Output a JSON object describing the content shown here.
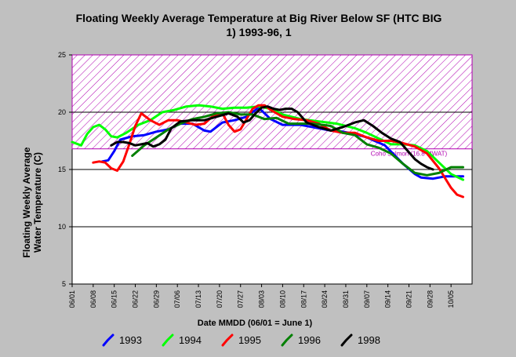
{
  "chart_data": {
    "type": "line",
    "title_lines": [
      "Floating Weekly Average Temperature at Big River Below SF (HTC BIG",
      "1) 1993-96, 1"
    ],
    "xlabel": "Date MMDD (06/01 = June 1)",
    "ylabel_lines": [
      "Floating Weekly Average",
      "Water Temperature (C)"
    ],
    "x_tick_labels": [
      "06/01",
      "06/08",
      "06/15",
      "06/22",
      "06/29",
      "07/06",
      "07/13",
      "07/20",
      "07/27",
      "08/03",
      "08/10",
      "08/17",
      "08/24",
      "08/31",
      "09/07",
      "09/14",
      "09/21",
      "09/28",
      "10/05"
    ],
    "x_tick_days": [
      0,
      7,
      14,
      21,
      28,
      35,
      42,
      49,
      56,
      63,
      70,
      77,
      84,
      91,
      98,
      105,
      112,
      119,
      126
    ],
    "xlim": [
      0,
      133
    ],
    "ylim": [
      5,
      25
    ],
    "y_ticks": [
      5,
      10,
      15,
      20,
      25
    ],
    "y_gridlines": [
      10,
      15,
      20
    ],
    "band": {
      "y0": 16.8,
      "y1": 25,
      "color": "#b000b0"
    },
    "annotation": "Coho Salmon (16.8 MWAT)",
    "series": [
      {
        "name": "1993",
        "color": "#0000ff",
        "points": [
          [
            10,
            15.7
          ],
          [
            12,
            15.8
          ],
          [
            14,
            16.6
          ],
          [
            16,
            17.6
          ],
          [
            20,
            17.9
          ],
          [
            24,
            18.0
          ],
          [
            28,
            18.3
          ],
          [
            32,
            18.5
          ],
          [
            36,
            19.0
          ],
          [
            40,
            19.0
          ],
          [
            44,
            18.4
          ],
          [
            46,
            18.3
          ],
          [
            50,
            19.1
          ],
          [
            54,
            19.3
          ],
          [
            58,
            19.6
          ],
          [
            62,
            20.4
          ],
          [
            66,
            19.4
          ],
          [
            70,
            18.9
          ],
          [
            76,
            18.9
          ],
          [
            80,
            18.7
          ],
          [
            86,
            18.4
          ],
          [
            90,
            18.3
          ],
          [
            94,
            18.1
          ],
          [
            98,
            17.8
          ],
          [
            104,
            17.1
          ],
          [
            110,
            15.5
          ],
          [
            114,
            14.6
          ],
          [
            116,
            14.3
          ],
          [
            120,
            14.2
          ],
          [
            124,
            14.4
          ],
          [
            128,
            14.4
          ],
          [
            130,
            14.4
          ]
        ]
      },
      {
        "name": "1994",
        "color": "#00ff00",
        "points": [
          [
            0,
            17.4
          ],
          [
            3,
            17.1
          ],
          [
            5,
            18.1
          ],
          [
            7,
            18.7
          ],
          [
            9,
            18.9
          ],
          [
            11,
            18.5
          ],
          [
            13,
            17.9
          ],
          [
            15,
            17.8
          ],
          [
            18,
            18.2
          ],
          [
            22,
            18.9
          ],
          [
            26,
            19.3
          ],
          [
            30,
            20.0
          ],
          [
            34,
            20.2
          ],
          [
            38,
            20.5
          ],
          [
            42,
            20.6
          ],
          [
            46,
            20.5
          ],
          [
            50,
            20.3
          ],
          [
            54,
            20.4
          ],
          [
            58,
            20.4
          ],
          [
            62,
            20.5
          ],
          [
            66,
            20.3
          ],
          [
            70,
            19.8
          ],
          [
            76,
            19.4
          ],
          [
            82,
            19.2
          ],
          [
            88,
            19.0
          ],
          [
            94,
            18.6
          ],
          [
            98,
            18.2
          ],
          [
            102,
            17.7
          ],
          [
            106,
            17.2
          ],
          [
            110,
            17.2
          ],
          [
            114,
            17.1
          ],
          [
            118,
            16.6
          ],
          [
            122,
            15.6
          ],
          [
            126,
            14.6
          ],
          [
            130,
            14.1
          ]
        ]
      },
      {
        "name": "1995",
        "color": "#ff0000",
        "points": [
          [
            7,
            15.6
          ],
          [
            9,
            15.7
          ],
          [
            11,
            15.6
          ],
          [
            13,
            15.1
          ],
          [
            15,
            14.9
          ],
          [
            17,
            15.7
          ],
          [
            19,
            17.2
          ],
          [
            21,
            18.8
          ],
          [
            23,
            19.9
          ],
          [
            26,
            19.3
          ],
          [
            29,
            18.9
          ],
          [
            32,
            19.3
          ],
          [
            35,
            19.3
          ],
          [
            38,
            19.1
          ],
          [
            41,
            18.9
          ],
          [
            44,
            19.0
          ],
          [
            47,
            19.7
          ],
          [
            50,
            19.9
          ],
          [
            52,
            18.9
          ],
          [
            54,
            18.3
          ],
          [
            56,
            18.5
          ],
          [
            58,
            19.4
          ],
          [
            60,
            20.3
          ],
          [
            62,
            20.6
          ],
          [
            64,
            20.6
          ],
          [
            66,
            20.2
          ],
          [
            70,
            19.6
          ],
          [
            74,
            19.4
          ],
          [
            78,
            19.3
          ],
          [
            82,
            19.0
          ],
          [
            86,
            18.4
          ],
          [
            90,
            18.2
          ],
          [
            94,
            18.2
          ],
          [
            98,
            17.8
          ],
          [
            102,
            17.5
          ],
          [
            106,
            17.5
          ],
          [
            110,
            17.3
          ],
          [
            114,
            17.0
          ],
          [
            118,
            16.4
          ],
          [
            122,
            15.1
          ],
          [
            126,
            13.4
          ],
          [
            128,
            12.8
          ],
          [
            130,
            12.6
          ]
        ]
      },
      {
        "name": "1996",
        "color": "#008000",
        "points": [
          [
            20,
            16.2
          ],
          [
            24,
            17.1
          ],
          [
            28,
            17.8
          ],
          [
            32,
            18.5
          ],
          [
            36,
            19.0
          ],
          [
            40,
            19.4
          ],
          [
            44,
            19.6
          ],
          [
            48,
            19.9
          ],
          [
            52,
            20.0
          ],
          [
            56,
            19.8
          ],
          [
            60,
            19.8
          ],
          [
            64,
            19.4
          ],
          [
            68,
            19.5
          ],
          [
            72,
            19.0
          ],
          [
            76,
            19.0
          ],
          [
            80,
            19.0
          ],
          [
            86,
            18.8
          ],
          [
            90,
            18.2
          ],
          [
            94,
            18.0
          ],
          [
            98,
            17.2
          ],
          [
            102,
            16.9
          ],
          [
            106,
            16.4
          ],
          [
            110,
            15.5
          ],
          [
            114,
            14.7
          ],
          [
            118,
            14.5
          ],
          [
            122,
            14.7
          ],
          [
            126,
            15.2
          ],
          [
            130,
            15.2
          ]
        ]
      },
      {
        "name": "1998",
        "color": "#000000",
        "points": [
          [
            13,
            17.1
          ],
          [
            15,
            17.4
          ],
          [
            17,
            17.4
          ],
          [
            19,
            17.3
          ],
          [
            21,
            17.1
          ],
          [
            23,
            17.2
          ],
          [
            25,
            17.3
          ],
          [
            27,
            17.0
          ],
          [
            29,
            17.2
          ],
          [
            31,
            17.6
          ],
          [
            33,
            18.6
          ],
          [
            36,
            19.2
          ],
          [
            40,
            19.3
          ],
          [
            44,
            19.3
          ],
          [
            48,
            19.6
          ],
          [
            52,
            19.9
          ],
          [
            55,
            19.6
          ],
          [
            57,
            19.1
          ],
          [
            59,
            19.3
          ],
          [
            61,
            19.9
          ],
          [
            63,
            20.4
          ],
          [
            65,
            20.5
          ],
          [
            67,
            20.3
          ],
          [
            69,
            20.2
          ],
          [
            71,
            20.3
          ],
          [
            73,
            20.3
          ],
          [
            75,
            20.0
          ],
          [
            78,
            19.1
          ],
          [
            82,
            18.7
          ],
          [
            86,
            18.4
          ],
          [
            90,
            18.7
          ],
          [
            94,
            19.1
          ],
          [
            97,
            19.3
          ],
          [
            100,
            18.8
          ],
          [
            103,
            18.2
          ],
          [
            106,
            17.7
          ],
          [
            109,
            17.4
          ],
          [
            112,
            16.5
          ],
          [
            114,
            15.9
          ],
          [
            116,
            15.5
          ],
          [
            118,
            15.2
          ],
          [
            120,
            15.0
          ]
        ]
      }
    ],
    "legend_placement": "bottom",
    "grid": "horizontal"
  }
}
